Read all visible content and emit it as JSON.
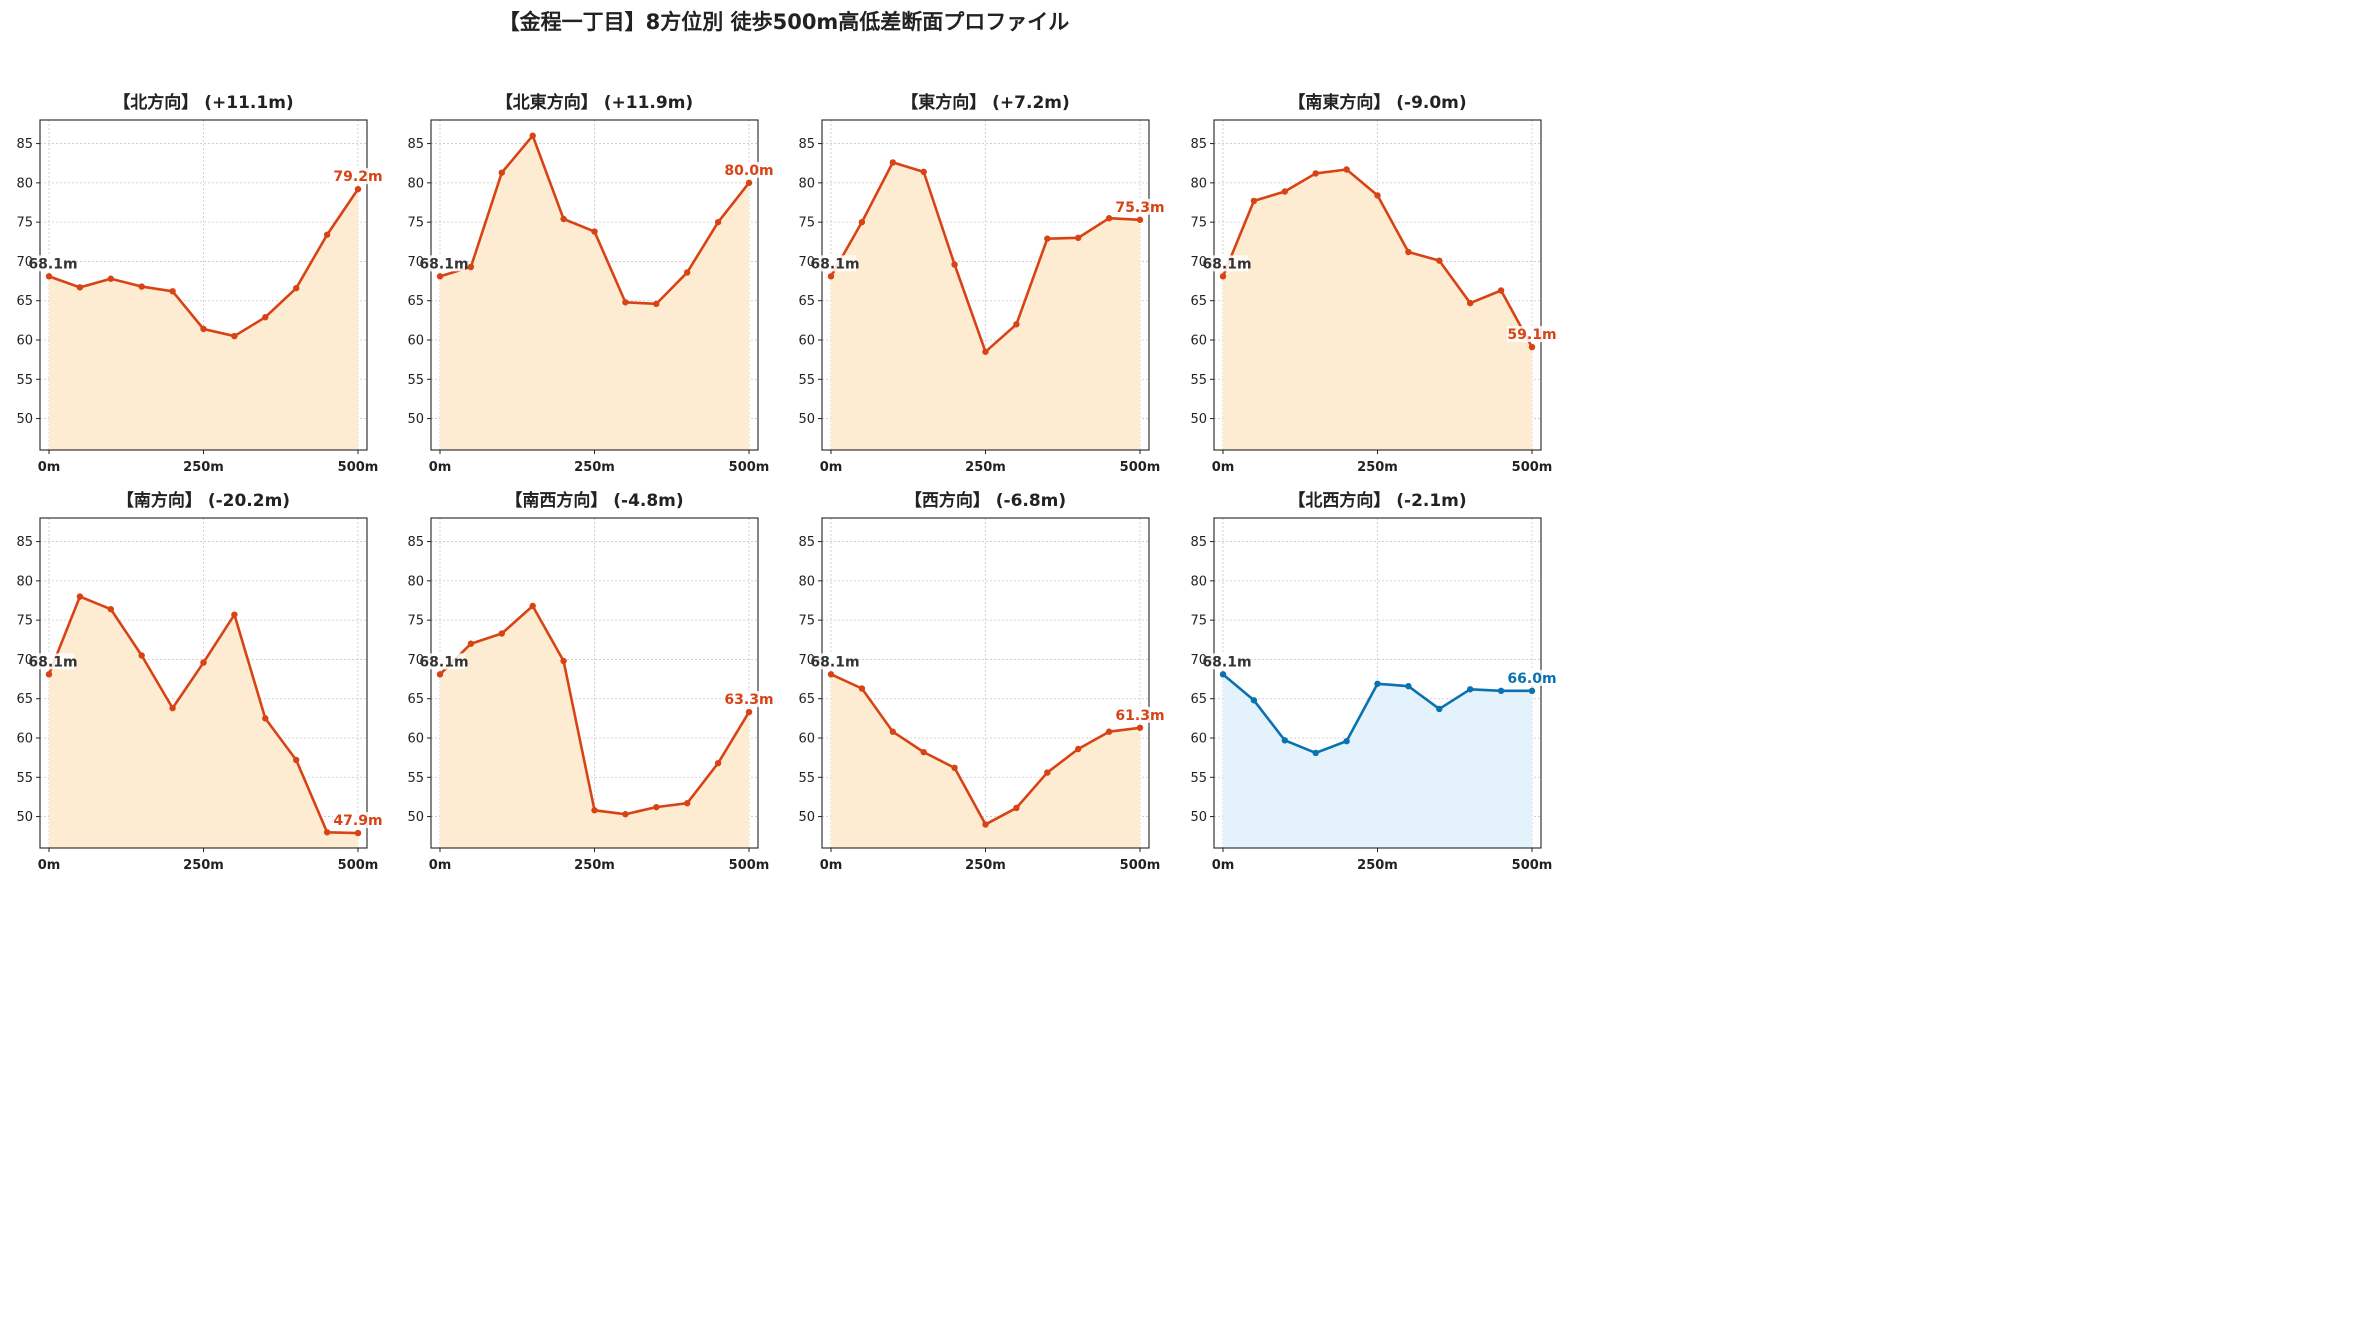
{
  "title": "【金程一丁目】8方位別 徒歩500m高低差断面プロファイル",
  "chart_data": [
    {
      "type": "line",
      "title": "【北方向】 (+11.1m)",
      "color": "#d84315",
      "fill": "#fdecd2",
      "x": [
        0,
        50,
        100,
        150,
        200,
        250,
        300,
        350,
        400,
        450,
        500
      ],
      "values": [
        68.1,
        66.7,
        67.8,
        66.8,
        66.2,
        61.4,
        60.5,
        62.9,
        66.6,
        73.4,
        79.2
      ],
      "start_label": "68.1m",
      "end_label": "79.2m",
      "xticks": [
        "0m",
        "250m",
        "500m"
      ],
      "yticks": [
        50,
        55,
        60,
        65,
        70,
        75,
        80,
        85
      ],
      "ylim": [
        46,
        88
      ],
      "grid": true
    },
    {
      "type": "line",
      "title": "【北東方向】 (+11.9m)",
      "color": "#d84315",
      "fill": "#fdecd2",
      "x": [
        0,
        50,
        100,
        150,
        200,
        250,
        300,
        350,
        400,
        450,
        500
      ],
      "values": [
        68.1,
        69.3,
        81.3,
        86.0,
        75.4,
        73.8,
        64.8,
        64.6,
        68.6,
        75.0,
        80.0
      ],
      "start_label": "68.1m",
      "end_label": "80.0m",
      "xticks": [
        "0m",
        "250m",
        "500m"
      ],
      "yticks": [
        50,
        55,
        60,
        65,
        70,
        75,
        80,
        85
      ],
      "ylim": [
        46,
        88
      ],
      "grid": true
    },
    {
      "type": "line",
      "title": "【東方向】 (+7.2m)",
      "color": "#d84315",
      "fill": "#fdecd2",
      "x": [
        0,
        50,
        100,
        150,
        200,
        250,
        300,
        350,
        400,
        450,
        500
      ],
      "values": [
        68.1,
        75.0,
        82.6,
        81.4,
        69.6,
        58.5,
        62.0,
        72.9,
        73.0,
        75.5,
        75.3
      ],
      "start_label": "68.1m",
      "end_label": "75.3m",
      "xticks": [
        "0m",
        "250m",
        "500m"
      ],
      "yticks": [
        50,
        55,
        60,
        65,
        70,
        75,
        80,
        85
      ],
      "ylim": [
        46,
        88
      ],
      "grid": true
    },
    {
      "type": "line",
      "title": "【南東方向】 (-9.0m)",
      "color": "#d84315",
      "fill": "#fdecd2",
      "x": [
        0,
        50,
        100,
        150,
        200,
        250,
        300,
        350,
        400,
        450,
        500
      ],
      "values": [
        68.1,
        77.7,
        78.9,
        81.2,
        81.7,
        78.4,
        71.2,
        70.1,
        64.7,
        66.3,
        59.1
      ],
      "start_label": "68.1m",
      "end_label": "59.1m",
      "xticks": [
        "0m",
        "250m",
        "500m"
      ],
      "yticks": [
        50,
        55,
        60,
        65,
        70,
        75,
        80,
        85
      ],
      "ylim": [
        46,
        88
      ],
      "grid": true
    },
    {
      "type": "line",
      "title": "【南方向】 (-20.2m)",
      "color": "#d84315",
      "fill": "#fdecd2",
      "x": [
        0,
        50,
        100,
        150,
        200,
        250,
        300,
        350,
        400,
        450,
        500
      ],
      "values": [
        68.1,
        78.0,
        76.4,
        70.5,
        63.8,
        69.6,
        75.7,
        62.5,
        57.2,
        48.0,
        47.9
      ],
      "start_label": "68.1m",
      "end_label": "47.9m",
      "xticks": [
        "0m",
        "250m",
        "500m"
      ],
      "yticks": [
        50,
        55,
        60,
        65,
        70,
        75,
        80,
        85
      ],
      "ylim": [
        46,
        88
      ],
      "grid": true
    },
    {
      "type": "line",
      "title": "【南西方向】 (-4.8m)",
      "color": "#d84315",
      "fill": "#fdecd2",
      "x": [
        0,
        50,
        100,
        150,
        200,
        250,
        300,
        350,
        400,
        450,
        500
      ],
      "values": [
        68.1,
        72.0,
        73.3,
        76.8,
        69.8,
        50.8,
        50.3,
        51.2,
        51.7,
        56.8,
        63.3
      ],
      "start_label": "68.1m",
      "end_label": "63.3m",
      "xticks": [
        "0m",
        "250m",
        "500m"
      ],
      "yticks": [
        50,
        55,
        60,
        65,
        70,
        75,
        80,
        85
      ],
      "ylim": [
        46,
        88
      ],
      "grid": true
    },
    {
      "type": "line",
      "title": "【西方向】 (-6.8m)",
      "color": "#d84315",
      "fill": "#fdecd2",
      "x": [
        0,
        50,
        100,
        150,
        200,
        250,
        300,
        350,
        400,
        450,
        500
      ],
      "values": [
        68.1,
        66.3,
        60.8,
        58.2,
        56.2,
        49.0,
        51.1,
        55.6,
        58.6,
        60.8,
        61.3
      ],
      "start_label": "68.1m",
      "end_label": "61.3m",
      "xticks": [
        "0m",
        "250m",
        "500m"
      ],
      "yticks": [
        50,
        55,
        60,
        65,
        70,
        75,
        80,
        85
      ],
      "ylim": [
        46,
        88
      ],
      "grid": true
    },
    {
      "type": "line",
      "title": "【北西方向】 (-2.1m)",
      "color": "#0a72b0",
      "fill": "#e3f2fb",
      "x": [
        0,
        50,
        100,
        150,
        200,
        250,
        300,
        350,
        400,
        450,
        500
      ],
      "values": [
        68.1,
        64.8,
        59.7,
        58.1,
        59.6,
        66.9,
        66.6,
        63.7,
        66.2,
        66.0,
        66.0
      ],
      "start_label": "68.1m",
      "end_label": "66.0m",
      "xticks": [
        "0m",
        "250m",
        "500m"
      ],
      "yticks": [
        50,
        55,
        60,
        65,
        70,
        75,
        80,
        85
      ],
      "ylim": [
        46,
        88
      ],
      "grid": true
    }
  ]
}
